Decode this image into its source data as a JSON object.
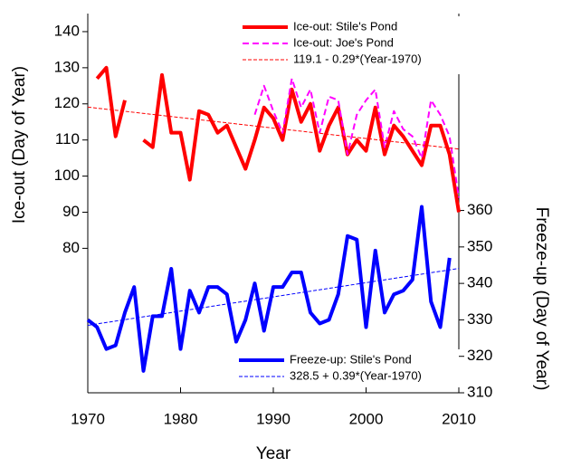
{
  "chart_data": {
    "type": "line",
    "ylabel": "Ice-out (Day of Year)",
    "y2label": "Freeze-up (Day of Year)",
    "xlabel": "Year",
    "xlim": [
      1970,
      2010
    ],
    "xticks": [
      1970,
      1980,
      1990,
      2000,
      2010
    ],
    "ylim": [
      40,
      145
    ],
    "yticks": [
      80,
      90,
      100,
      110,
      120,
      130,
      140
    ],
    "y2lim": [
      310,
      414
    ],
    "y2ticks": [
      310,
      320,
      330,
      340,
      350,
      360
    ],
    "series": [
      {
        "name": "Ice-out: Stile's Pond",
        "color": "#ff0000",
        "style": "solid",
        "axis": "y",
        "x": [
          1971,
          1972,
          1973,
          1974,
          1975,
          1976,
          1977,
          1978,
          1979,
          1980,
          1981,
          1982,
          1983,
          1984,
          1985,
          1986,
          1987,
          1988,
          1989,
          1990,
          1991,
          1992,
          1993,
          1994,
          1995,
          1996,
          1997,
          1998,
          1999,
          2000,
          2001,
          2002,
          2003,
          2004,
          2005,
          2006,
          2007,
          2008,
          2009,
          2010
        ],
        "values": [
          127,
          130,
          111,
          121,
          null,
          110,
          108,
          128,
          112,
          112,
          99,
          118,
          117,
          112,
          114,
          108,
          102,
          110,
          119,
          116,
          110,
          124,
          115,
          120,
          107,
          114,
          119,
          106,
          110,
          107,
          119,
          106,
          114,
          111,
          107,
          103,
          114,
          114,
          106,
          90
        ]
      },
      {
        "name": "Ice-out: Joe's Pond",
        "color": "#ff00ff",
        "style": "dashed",
        "axis": "y",
        "x": [
          1988,
          1989,
          1990,
          1991,
          1992,
          1993,
          1994,
          1995,
          1996,
          1997,
          1998,
          1999,
          2000,
          2001,
          2002,
          2003,
          2004,
          2005,
          2006,
          2007,
          2008,
          2009,
          2010
        ],
        "values": [
          117,
          125,
          118,
          112,
          127,
          119,
          124,
          112,
          122,
          121,
          106,
          117,
          121,
          124,
          108,
          118,
          113,
          111,
          105,
          121,
          117,
          111,
          94
        ]
      },
      {
        "name": "119.1 - 0.29*(Year-1970)",
        "color": "#ff0000",
        "style": "dotted",
        "axis": "y",
        "x": [
          1970,
          2010
        ],
        "values": [
          119.1,
          107.5
        ]
      },
      {
        "name": "Freeze-up: Stile's Pond",
        "color": "#0000ff",
        "style": "solid",
        "axis": "y2",
        "x": [
          1970,
          1971,
          1972,
          1973,
          1974,
          1975,
          1976,
          1977,
          1978,
          1979,
          1980,
          1981,
          1982,
          1983,
          1984,
          1985,
          1986,
          1987,
          1988,
          1989,
          1990,
          1991,
          1992,
          1993,
          1994,
          1995,
          1996,
          1997,
          1998,
          1999,
          2000,
          2001,
          2002,
          2003,
          2004,
          2005,
          2006,
          2007,
          2008,
          2009
        ],
        "values": [
          330,
          328,
          322,
          323,
          332,
          339,
          316,
          331,
          331,
          344,
          322,
          338,
          332,
          339,
          339,
          337,
          324,
          330,
          340,
          327,
          339,
          339,
          343,
          343,
          332,
          329,
          330,
          337,
          353,
          352,
          328,
          349,
          332,
          337,
          338,
          341,
          361,
          335,
          328,
          347
        ]
      },
      {
        "name": "328.5 + 0.39*(Year-1970)",
        "color": "#0000ff",
        "style": "dotted",
        "axis": "y2",
        "x": [
          1970,
          2010
        ],
        "values": [
          328.5,
          344.1
        ]
      }
    ]
  }
}
